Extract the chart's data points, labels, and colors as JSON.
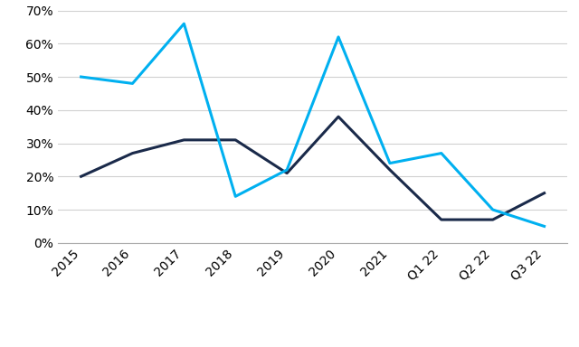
{
  "x_labels": [
    "2015",
    "2016",
    "2017",
    "2018",
    "2019",
    "2020",
    "2021",
    "Q1 22",
    "Q2 22",
    "Q3 22"
  ],
  "revenue_growth": [
    0.2,
    0.27,
    0.31,
    0.31,
    0.21,
    0.38,
    0.22,
    0.07,
    0.07,
    0.15
  ],
  "employee_growth": [
    0.5,
    0.48,
    0.66,
    0.14,
    0.22,
    0.62,
    0.24,
    0.27,
    0.1,
    0.05
  ],
  "revenue_color": "#1a2a4a",
  "employee_color": "#00b0f0",
  "ylim": [
    0.0,
    0.7
  ],
  "yticks": [
    0.0,
    0.1,
    0.2,
    0.3,
    0.4,
    0.5,
    0.6,
    0.7
  ],
  "background_color": "#ffffff",
  "grid_color": "#d0d0d0",
  "line_width": 2.2,
  "tick_fontsize": 10,
  "legend_fontsize": 10
}
